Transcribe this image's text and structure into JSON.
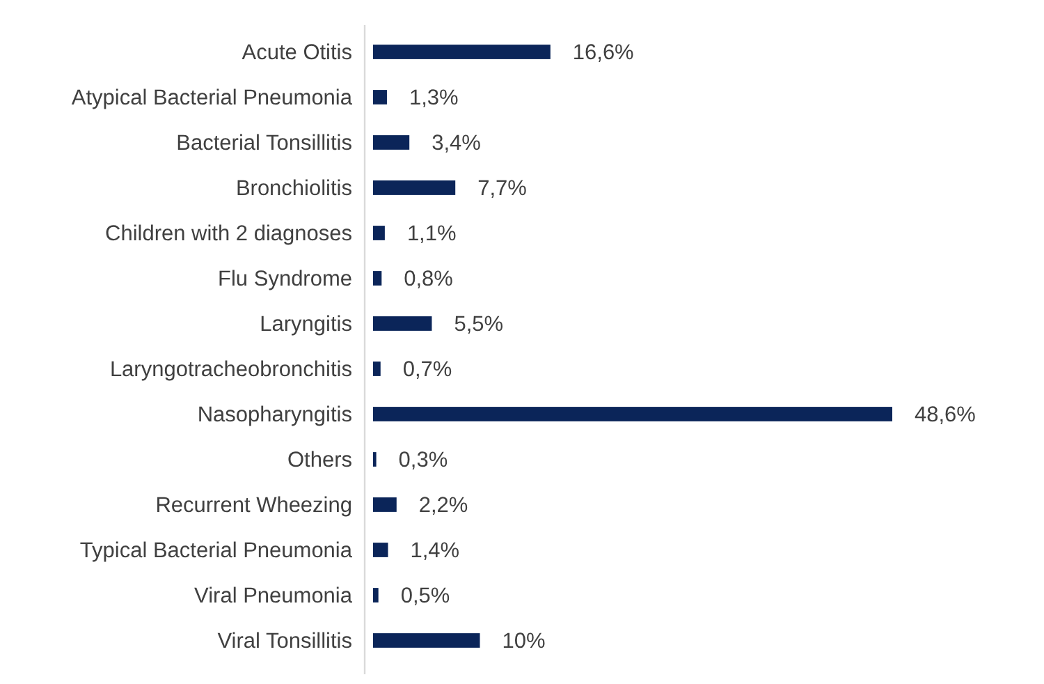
{
  "chart_data": {
    "type": "bar",
    "orientation": "horizontal",
    "categories": [
      "Acute Otitis",
      "Atypical Bacterial Pneumonia",
      "Bacterial Tonsillitis",
      "Bronchiolitis",
      "Children with 2 diagnoses",
      "Flu Syndrome",
      "Laryngitis",
      "Laryngotracheobronchitis",
      "Nasopharyngitis",
      "Others",
      "Recurrent Wheezing",
      "Typical Bacterial Pneumonia",
      "Viral Pneumonia",
      "Viral Tonsillitis"
    ],
    "values": [
      16.6,
      1.3,
      3.4,
      7.7,
      1.1,
      0.8,
      5.5,
      0.7,
      48.6,
      0.3,
      2.2,
      1.4,
      0.5,
      10
    ],
    "value_labels": [
      "16,6%",
      "1,3%",
      "3,4%",
      "7,7%",
      "1,1%",
      "0,8%",
      "5,5%",
      "0,7%",
      "48,6%",
      "0,3%",
      "2,2%",
      "1,4%",
      "0,5%",
      "10%"
    ],
    "color": "#0b2559"
  }
}
